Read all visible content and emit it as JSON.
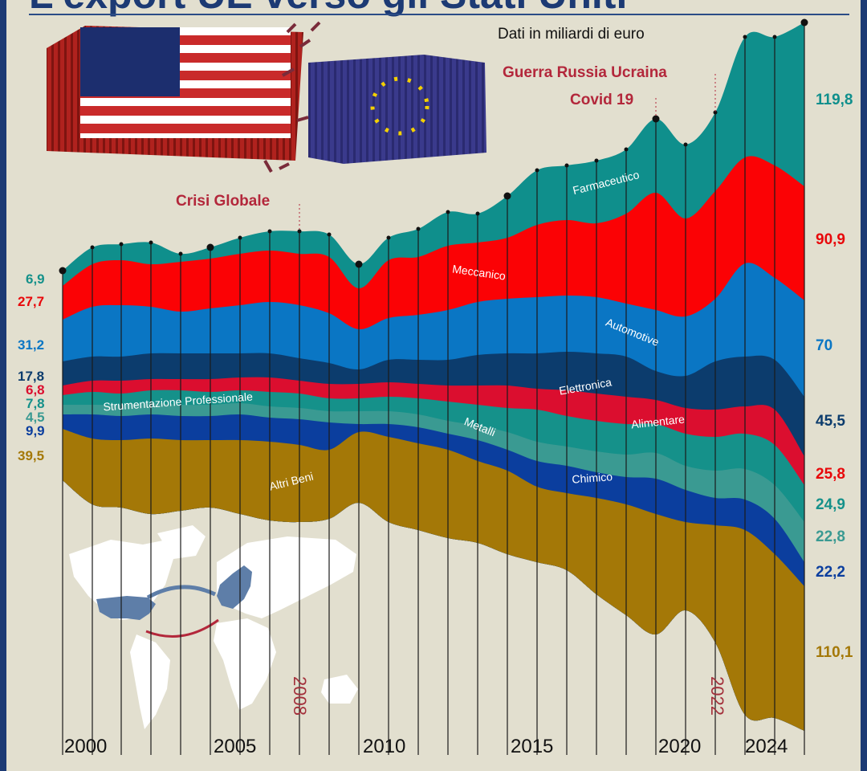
{
  "title": "L'export UE verso gli Stati Uniti",
  "subtitle": "Dati in miliardi di euro",
  "events": {
    "crisi": "Crisi Globale",
    "covid": "Covid 19",
    "guerra": "Guerra Russia Ucraina"
  },
  "left_values": [
    "6,9",
    "27,7",
    "31,2",
    "17,8",
    "6,8",
    "7,8",
    "4,5",
    "9,9",
    "39,5"
  ],
  "right_values": [
    "119,8",
    "90,9",
    "70",
    "45,5",
    "25,8",
    "24,9",
    "22,8",
    "22,2",
    "110,1"
  ],
  "year_axis": [
    "2000",
    "2005",
    "2010",
    "2015",
    "2020",
    "2024"
  ],
  "vertical_years": {
    "y2008": "2008",
    "y2022": "2022"
  },
  "colors": {
    "farmaceutico": "#0f8f8c",
    "meccanico": "#fb0205",
    "automotive": "#0a76c4",
    "elettronica": "#0c3c6d",
    "alimentare": "#db0e2f",
    "strumentazione": "#15918a",
    "metalli": "#3a9a92",
    "chimico": "#0b3e9e",
    "altri_beni": "#a47807",
    "background": "#e2dfcf",
    "frame": "#1c3a74"
  },
  "chart_data": {
    "type": "area",
    "unit": "miliardi di euro",
    "x": [
      1999,
      2024
    ],
    "series": [
      {
        "name": "Farmaceutico",
        "start": 6.9,
        "end": 119.8
      },
      {
        "name": "Meccanico",
        "start": 27.7,
        "end": 90.9
      },
      {
        "name": "Automotive",
        "start": 31.2,
        "end": 70
      },
      {
        "name": "Elettronica",
        "start": 17.8,
        "end": 45.5
      },
      {
        "name": "Alimentare",
        "start": 6.8,
        "end": 25.8
      },
      {
        "name": "Strumentazione Professionale",
        "start": 7.8,
        "end": 24.9
      },
      {
        "name": "Metalli",
        "start": 4.5,
        "end": 22.8
      },
      {
        "name": "Chimico",
        "start": 9.9,
        "end": 22.2
      },
      {
        "name": "Altri Beni",
        "start": 39.5,
        "end": 110.1
      }
    ],
    "annotations": [
      "Crisi Globale",
      "Covid 19",
      "Guerra Russia Ucraina"
    ]
  }
}
